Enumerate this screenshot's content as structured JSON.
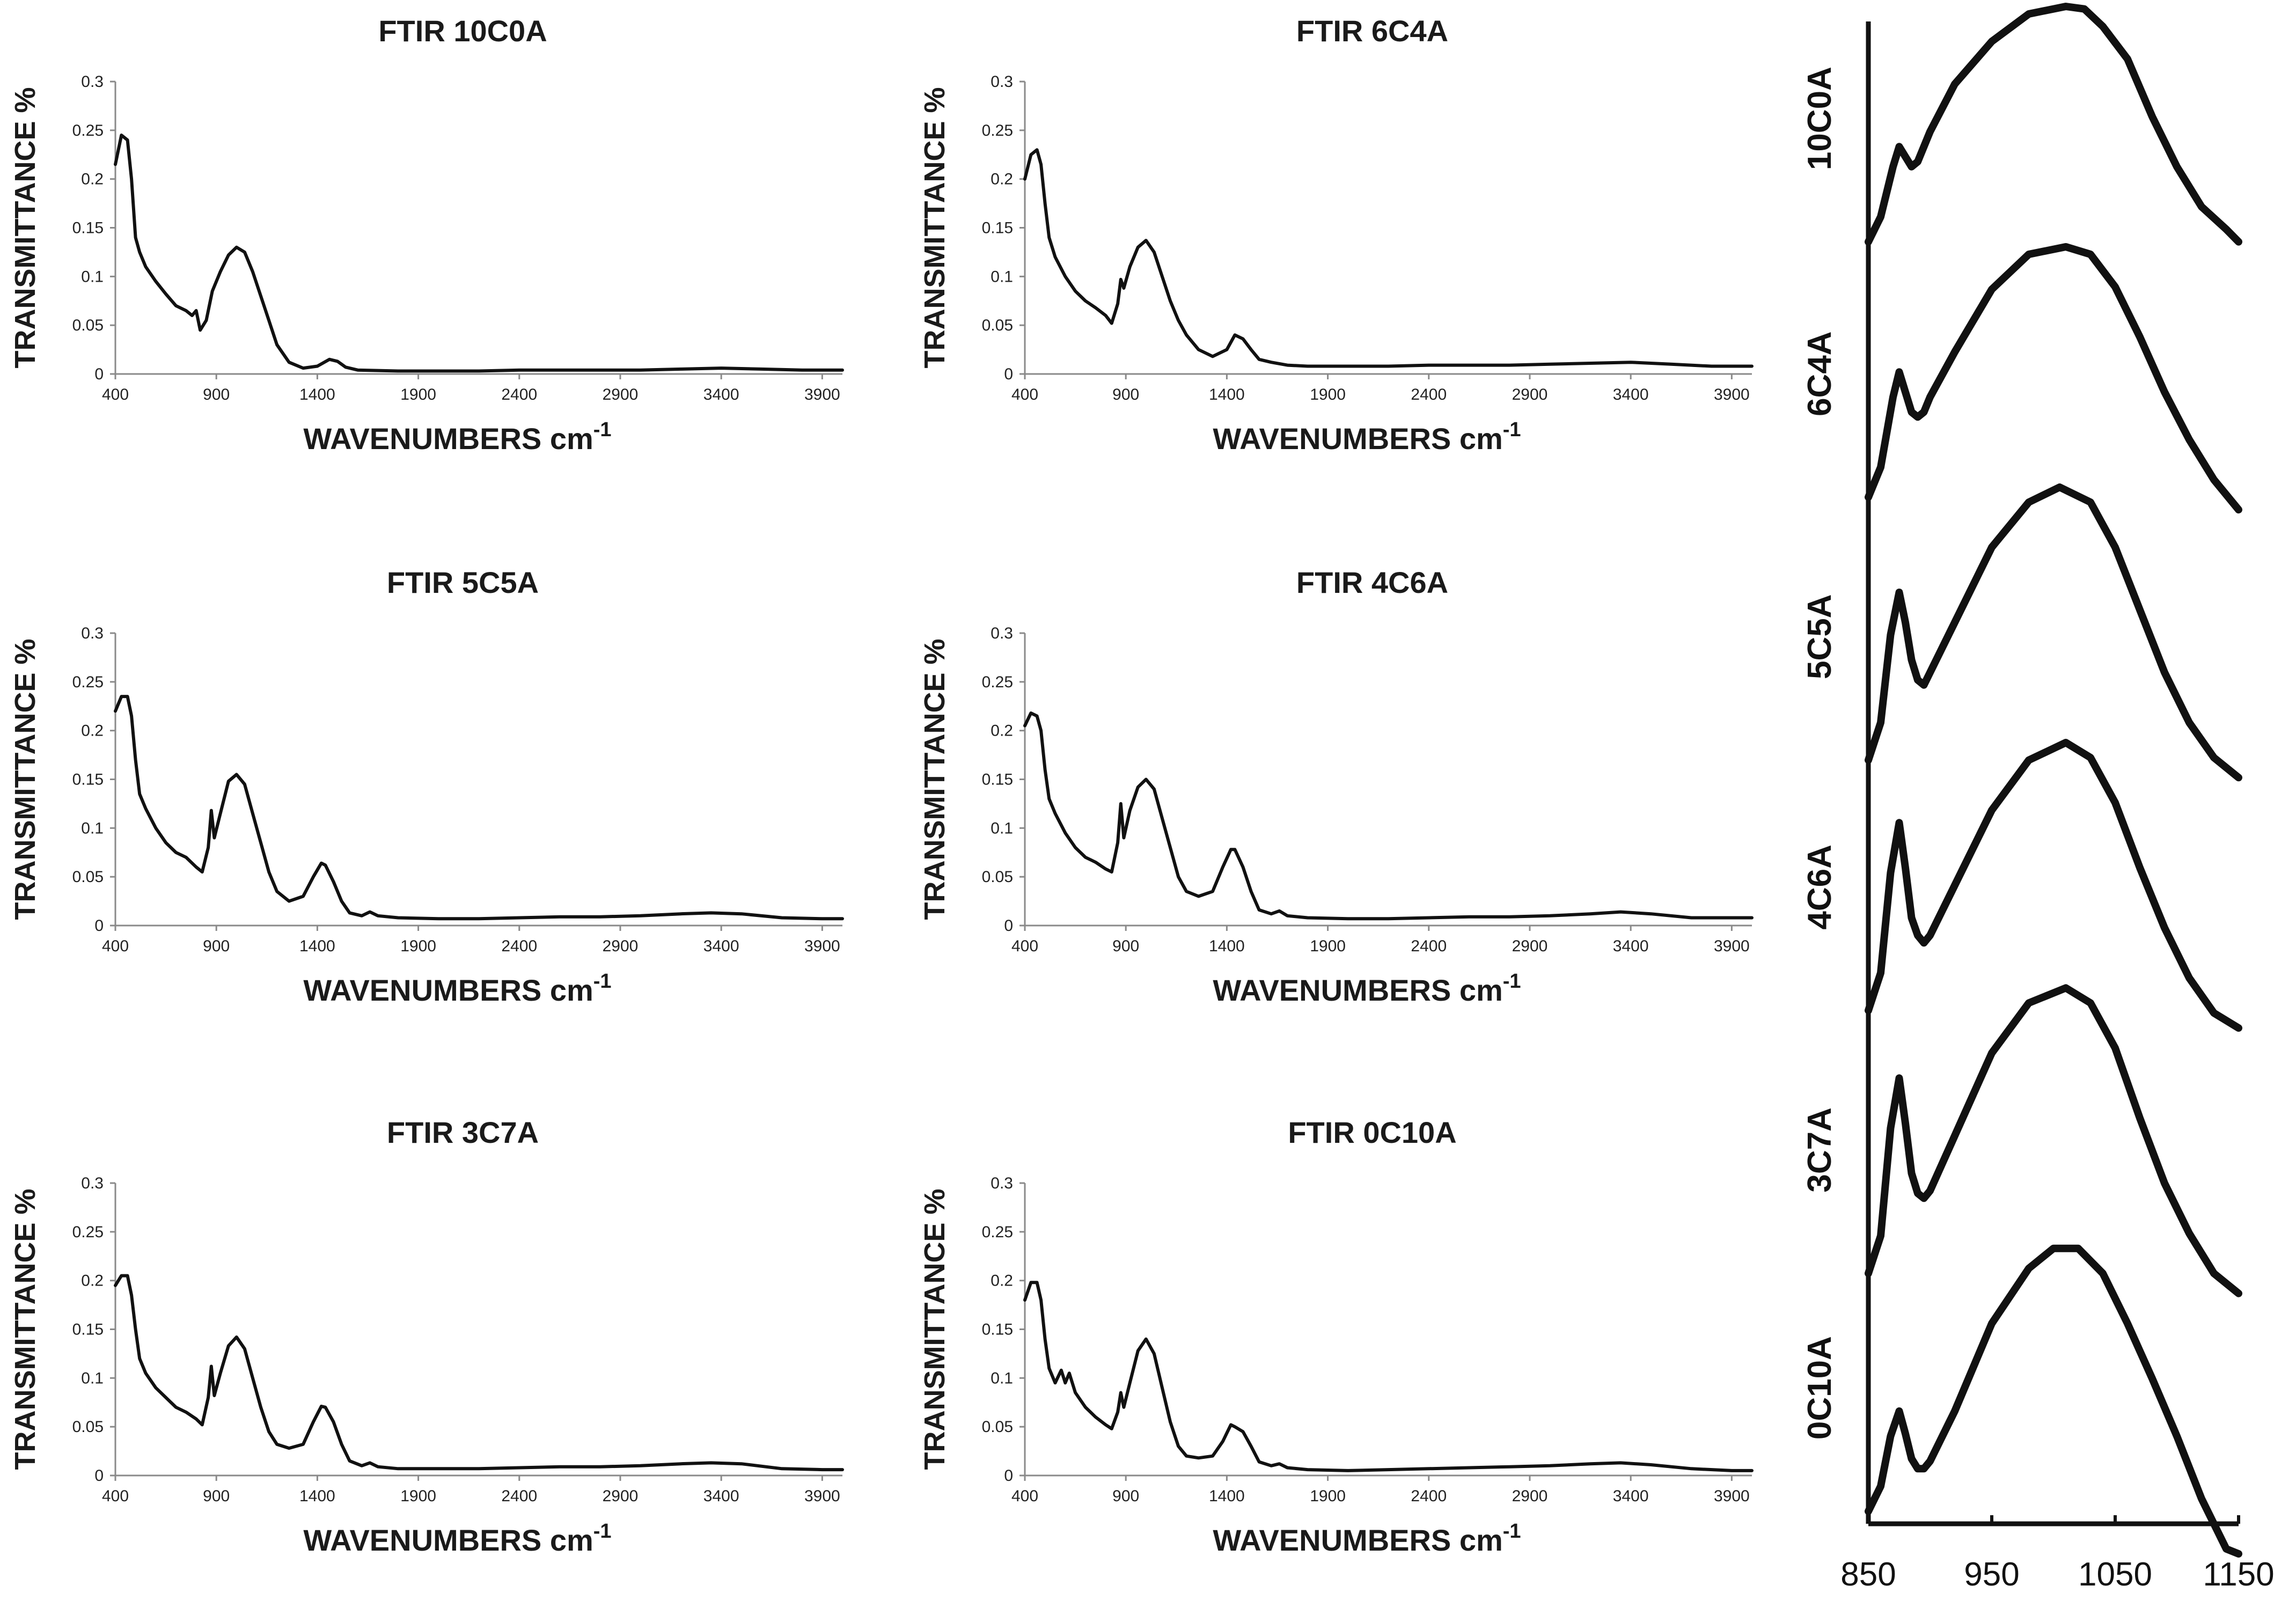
{
  "chart_data": [
    {
      "type": "line",
      "title": "FTIR 10C0A",
      "xlabel": "WAVENUMBERS cm",
      "xlabel_sup": "-1",
      "ylabel": "TRANSMITTANCE %",
      "xlim": [
        400,
        4000
      ],
      "ylim": [
        0,
        0.3
      ],
      "xticks": [
        400,
        900,
        1400,
        1900,
        2400,
        2900,
        3400,
        3900
      ],
      "yticks": [
        0,
        0.05,
        0.1,
        0.15,
        0.2,
        0.25,
        0.3
      ],
      "series": [
        {
          "name": "10C0A",
          "x": [
            400,
            430,
            460,
            480,
            500,
            520,
            550,
            600,
            650,
            700,
            750,
            780,
            800,
            820,
            850,
            880,
            920,
            960,
            1000,
            1040,
            1080,
            1120,
            1160,
            1200,
            1260,
            1330,
            1400,
            1460,
            1500,
            1540,
            1600,
            1800,
            2000,
            2200,
            2400,
            2600,
            2800,
            3000,
            3200,
            3400,
            3600,
            3800,
            4000
          ],
          "y": [
            0.215,
            0.245,
            0.24,
            0.2,
            0.14,
            0.125,
            0.11,
            0.095,
            0.082,
            0.07,
            0.065,
            0.06,
            0.065,
            0.045,
            0.055,
            0.085,
            0.105,
            0.122,
            0.13,
            0.125,
            0.105,
            0.08,
            0.055,
            0.03,
            0.012,
            0.006,
            0.008,
            0.015,
            0.013,
            0.007,
            0.004,
            0.003,
            0.003,
            0.003,
            0.004,
            0.004,
            0.004,
            0.004,
            0.005,
            0.006,
            0.005,
            0.004,
            0.004
          ]
        }
      ]
    },
    {
      "type": "line",
      "title": "FTIR 6C4A",
      "xlabel": "WAVENUMBERS cm",
      "xlabel_sup": "-1",
      "ylabel": "TRANSMITTANCE %",
      "xlim": [
        400,
        4000
      ],
      "ylim": [
        0,
        0.3
      ],
      "xticks": [
        400,
        900,
        1400,
        1900,
        2400,
        2900,
        3400,
        3900
      ],
      "yticks": [
        0,
        0.05,
        0.1,
        0.15,
        0.2,
        0.25,
        0.3
      ],
      "series": [
        {
          "name": "6C4A",
          "x": [
            400,
            430,
            460,
            480,
            500,
            520,
            550,
            600,
            650,
            700,
            750,
            800,
            830,
            860,
            875,
            890,
            920,
            960,
            1000,
            1040,
            1080,
            1120,
            1160,
            1200,
            1260,
            1330,
            1400,
            1440,
            1480,
            1520,
            1560,
            1620,
            1700,
            1800,
            2000,
            2200,
            2400,
            2600,
            2800,
            3000,
            3200,
            3400,
            3600,
            3800,
            4000
          ],
          "y": [
            0.2,
            0.225,
            0.23,
            0.215,
            0.175,
            0.14,
            0.12,
            0.1,
            0.085,
            0.075,
            0.068,
            0.06,
            0.052,
            0.072,
            0.097,
            0.088,
            0.11,
            0.13,
            0.137,
            0.125,
            0.1,
            0.075,
            0.055,
            0.04,
            0.025,
            0.018,
            0.025,
            0.04,
            0.036,
            0.025,
            0.015,
            0.012,
            0.009,
            0.008,
            0.008,
            0.008,
            0.009,
            0.009,
            0.009,
            0.01,
            0.011,
            0.012,
            0.01,
            0.008,
            0.008
          ]
        }
      ]
    },
    {
      "type": "line",
      "title": "FTIR 5C5A",
      "xlabel": "WAVENUMBERS cm",
      "xlabel_sup": "-1",
      "ylabel": "TRANSMITTANCE %",
      "xlim": [
        400,
        4000
      ],
      "ylim": [
        0,
        0.3
      ],
      "xticks": [
        400,
        900,
        1400,
        1900,
        2400,
        2900,
        3400,
        3900
      ],
      "yticks": [
        0,
        0.05,
        0.1,
        0.15,
        0.2,
        0.25,
        0.3
      ],
      "series": [
        {
          "name": "5C5A",
          "x": [
            400,
            430,
            460,
            480,
            500,
            520,
            550,
            600,
            650,
            700,
            750,
            800,
            830,
            860,
            875,
            890,
            920,
            960,
            1000,
            1040,
            1080,
            1120,
            1160,
            1200,
            1260,
            1330,
            1380,
            1420,
            1440,
            1480,
            1520,
            1560,
            1620,
            1660,
            1700,
            1800,
            2000,
            2200,
            2400,
            2600,
            2800,
            3000,
            3200,
            3350,
            3500,
            3700,
            3900,
            4000
          ],
          "y": [
            0.22,
            0.235,
            0.235,
            0.215,
            0.17,
            0.135,
            0.12,
            0.1,
            0.085,
            0.075,
            0.07,
            0.06,
            0.055,
            0.08,
            0.118,
            0.09,
            0.115,
            0.148,
            0.155,
            0.145,
            0.115,
            0.085,
            0.055,
            0.035,
            0.025,
            0.03,
            0.05,
            0.064,
            0.062,
            0.045,
            0.025,
            0.013,
            0.01,
            0.014,
            0.01,
            0.008,
            0.007,
            0.007,
            0.008,
            0.009,
            0.009,
            0.01,
            0.012,
            0.013,
            0.012,
            0.008,
            0.007,
            0.007
          ]
        }
      ]
    },
    {
      "type": "line",
      "title": "FTIR 4C6A",
      "xlabel": "WAVENUMBERS cm",
      "xlabel_sup": "-1",
      "ylabel": "TRANSMITTANCE %",
      "xlim": [
        400,
        4000
      ],
      "ylim": [
        0,
        0.3
      ],
      "xticks": [
        400,
        900,
        1400,
        1900,
        2400,
        2900,
        3400,
        3900
      ],
      "yticks": [
        0,
        0.05,
        0.1,
        0.15,
        0.2,
        0.25,
        0.3
      ],
      "series": [
        {
          "name": "4C6A",
          "x": [
            400,
            430,
            460,
            480,
            500,
            520,
            550,
            600,
            650,
            700,
            750,
            800,
            830,
            860,
            875,
            890,
            920,
            960,
            1000,
            1040,
            1080,
            1120,
            1160,
            1200,
            1260,
            1330,
            1380,
            1420,
            1440,
            1480,
            1520,
            1560,
            1620,
            1660,
            1700,
            1800,
            2000,
            2200,
            2400,
            2600,
            2800,
            3000,
            3200,
            3350,
            3500,
            3700,
            3900,
            4000
          ],
          "y": [
            0.205,
            0.218,
            0.215,
            0.2,
            0.16,
            0.13,
            0.115,
            0.095,
            0.08,
            0.07,
            0.065,
            0.058,
            0.055,
            0.085,
            0.125,
            0.09,
            0.118,
            0.142,
            0.15,
            0.14,
            0.11,
            0.08,
            0.05,
            0.035,
            0.03,
            0.035,
            0.06,
            0.078,
            0.078,
            0.06,
            0.035,
            0.016,
            0.012,
            0.015,
            0.01,
            0.008,
            0.007,
            0.007,
            0.008,
            0.009,
            0.009,
            0.01,
            0.012,
            0.014,
            0.012,
            0.008,
            0.008,
            0.008
          ]
        }
      ]
    },
    {
      "type": "line",
      "title": "FTIR 3C7A",
      "xlabel": "WAVENUMBERS cm",
      "xlabel_sup": "-1",
      "ylabel": "TRANSMITTANCE %",
      "xlim": [
        400,
        4000
      ],
      "ylim": [
        0,
        0.3
      ],
      "xticks": [
        400,
        900,
        1400,
        1900,
        2400,
        2900,
        3400,
        3900
      ],
      "yticks": [
        0,
        0.05,
        0.1,
        0.15,
        0.2,
        0.25,
        0.3
      ],
      "series": [
        {
          "name": "3C7A",
          "x": [
            400,
            430,
            460,
            480,
            500,
            520,
            550,
            600,
            650,
            700,
            750,
            800,
            830,
            860,
            875,
            890,
            920,
            960,
            1000,
            1040,
            1080,
            1120,
            1160,
            1200,
            1260,
            1330,
            1380,
            1420,
            1440,
            1480,
            1520,
            1560,
            1620,
            1660,
            1700,
            1800,
            2000,
            2200,
            2400,
            2600,
            2800,
            3000,
            3200,
            3350,
            3500,
            3700,
            3900,
            4000
          ],
          "y": [
            0.195,
            0.205,
            0.205,
            0.185,
            0.15,
            0.12,
            0.105,
            0.09,
            0.08,
            0.07,
            0.065,
            0.058,
            0.052,
            0.08,
            0.112,
            0.082,
            0.105,
            0.133,
            0.142,
            0.13,
            0.1,
            0.07,
            0.045,
            0.032,
            0.028,
            0.032,
            0.055,
            0.071,
            0.07,
            0.055,
            0.032,
            0.015,
            0.01,
            0.013,
            0.009,
            0.007,
            0.007,
            0.007,
            0.008,
            0.009,
            0.009,
            0.01,
            0.012,
            0.013,
            0.012,
            0.007,
            0.006,
            0.006
          ]
        }
      ]
    },
    {
      "type": "line",
      "title": "FTIR 0C10A",
      "xlabel": "WAVENUMBERS cm",
      "xlabel_sup": "-1",
      "ylabel": "TRANSMITTANCE %",
      "xlim": [
        400,
        4000
      ],
      "ylim": [
        0,
        0.3
      ],
      "xticks": [
        400,
        900,
        1400,
        1900,
        2400,
        2900,
        3400,
        3900
      ],
      "yticks": [
        0,
        0.05,
        0.1,
        0.15,
        0.2,
        0.25,
        0.3
      ],
      "series": [
        {
          "name": "0C10A",
          "x": [
            400,
            430,
            460,
            480,
            500,
            520,
            550,
            580,
            600,
            620,
            650,
            700,
            750,
            800,
            830,
            860,
            875,
            890,
            920,
            960,
            1000,
            1040,
            1080,
            1120,
            1160,
            1200,
            1260,
            1330,
            1380,
            1420,
            1440,
            1480,
            1520,
            1560,
            1620,
            1660,
            1700,
            1800,
            2000,
            2200,
            2400,
            2600,
            2800,
            3000,
            3200,
            3350,
            3500,
            3700,
            3900,
            4000
          ],
          "y": [
            0.18,
            0.198,
            0.198,
            0.18,
            0.14,
            0.11,
            0.095,
            0.108,
            0.095,
            0.105,
            0.085,
            0.07,
            0.06,
            0.052,
            0.048,
            0.065,
            0.085,
            0.07,
            0.095,
            0.128,
            0.14,
            0.125,
            0.09,
            0.055,
            0.03,
            0.02,
            0.018,
            0.02,
            0.035,
            0.052,
            0.05,
            0.045,
            0.03,
            0.014,
            0.01,
            0.012,
            0.008,
            0.006,
            0.005,
            0.006,
            0.007,
            0.008,
            0.009,
            0.01,
            0.012,
            0.013,
            0.011,
            0.007,
            0.005,
            0.005
          ]
        }
      ]
    },
    {
      "type": "line",
      "title": "",
      "xlabel": "",
      "ylabel": "",
      "xlim": [
        850,
        1150
      ],
      "xticks": [
        850,
        950,
        1050,
        1150
      ],
      "ylim": [
        0,
        6
      ],
      "notes": "stacked spectra, arbitrary vertical offsets; y in offset units",
      "series": [
        {
          "name": "10C0A",
          "x": [
            850,
            860,
            870,
            875,
            880,
            885,
            890,
            900,
            920,
            950,
            980,
            1010,
            1025,
            1040,
            1060,
            1080,
            1100,
            1120,
            1140,
            1150
          ],
          "y": [
            5.12,
            5.22,
            5.42,
            5.5,
            5.46,
            5.42,
            5.44,
            5.56,
            5.75,
            5.92,
            6.03,
            6.06,
            6.05,
            5.98,
            5.85,
            5.62,
            5.42,
            5.26,
            5.17,
            5.12
          ]
        },
        {
          "name": "6C4A",
          "x": [
            850,
            860,
            870,
            875,
            880,
            885,
            890,
            895,
            900,
            920,
            950,
            980,
            1010,
            1030,
            1050,
            1070,
            1090,
            1110,
            1130,
            1150
          ],
          "y": [
            4.1,
            4.22,
            4.5,
            4.6,
            4.52,
            4.44,
            4.42,
            4.44,
            4.5,
            4.68,
            4.93,
            5.07,
            5.1,
            5.07,
            4.94,
            4.74,
            4.52,
            4.33,
            4.17,
            4.05
          ]
        },
        {
          "name": "5C5A",
          "x": [
            850,
            860,
            868,
            875,
            880,
            885,
            890,
            895,
            900,
            920,
            950,
            980,
            1005,
            1030,
            1050,
            1070,
            1090,
            1110,
            1130,
            1150
          ],
          "y": [
            3.05,
            3.2,
            3.55,
            3.72,
            3.6,
            3.45,
            3.37,
            3.35,
            3.4,
            3.6,
            3.9,
            4.08,
            4.14,
            4.08,
            3.9,
            3.65,
            3.4,
            3.2,
            3.06,
            2.98
          ]
        },
        {
          "name": "4C6A",
          "x": [
            850,
            860,
            868,
            875,
            880,
            885,
            890,
            895,
            900,
            920,
            950,
            980,
            1010,
            1030,
            1050,
            1070,
            1090,
            1110,
            1130,
            1150
          ],
          "y": [
            2.05,
            2.2,
            2.6,
            2.8,
            2.62,
            2.42,
            2.35,
            2.32,
            2.35,
            2.55,
            2.85,
            3.05,
            3.12,
            3.06,
            2.88,
            2.62,
            2.38,
            2.18,
            2.04,
            1.98
          ]
        },
        {
          "name": "3C7A",
          "x": [
            850,
            860,
            868,
            875,
            880,
            885,
            890,
            895,
            900,
            920,
            950,
            980,
            1010,
            1030,
            1050,
            1070,
            1090,
            1110,
            1130,
            1150
          ],
          "y": [
            1.0,
            1.15,
            1.58,
            1.78,
            1.6,
            1.4,
            1.32,
            1.3,
            1.33,
            1.55,
            1.88,
            2.08,
            2.14,
            2.08,
            1.9,
            1.62,
            1.36,
            1.16,
            1.0,
            0.92
          ]
        },
        {
          "name": "0C10A",
          "x": [
            850,
            860,
            868,
            875,
            880,
            885,
            890,
            895,
            900,
            920,
            950,
            980,
            1000,
            1020,
            1040,
            1060,
            1080,
            1100,
            1120,
            1140,
            1150
          ],
          "y": [
            0.05,
            0.15,
            0.35,
            0.45,
            0.36,
            0.26,
            0.22,
            0.22,
            0.25,
            0.45,
            0.8,
            1.02,
            1.1,
            1.1,
            1.0,
            0.8,
            0.58,
            0.35,
            0.1,
            -0.1,
            -0.12
          ]
        }
      ]
    }
  ]
}
